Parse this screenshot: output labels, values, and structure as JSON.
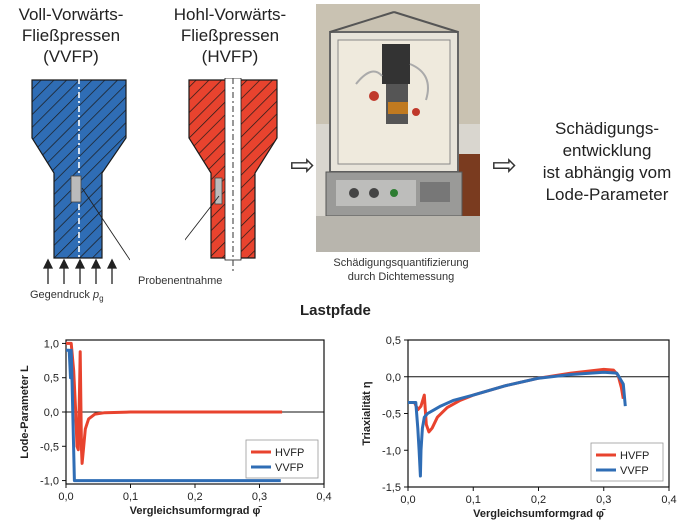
{
  "vvfp": {
    "title_line1": "Voll-Vorwärts-",
    "title_line2": "Fließpressen",
    "title_line3": "(VVFP)",
    "label_gegendruck": "Gegendruck",
    "label_gegendruck_sub": "p",
    "label_gegendruck_subscript": "g"
  },
  "hvfp": {
    "title_line1": "Hohl-Vorwärts-",
    "title_line2": "Fließpressen",
    "title_line3": "(HVFP)",
    "label_probe": "Probenentnahme"
  },
  "photo": {
    "caption_line1": "Schädigungsquantifizierung",
    "caption_line2": "durch Dichtemessung"
  },
  "conclusion": {
    "line1": "Schädigungs-",
    "line2": "entwicklung",
    "line3": "ist abhängig vom",
    "line4": "Lode-Parameter"
  },
  "section_title": "Lastpfade",
  "colors": {
    "vvfp_blue": "#2f6db5",
    "hvfp_red": "#e8432e",
    "hatch": "#1a1a1a"
  },
  "chart_data": [
    {
      "type": "line",
      "xlabel": "Vergleichsumformgrad φ̄",
      "ylabel": "Lode-Parameter L",
      "xlim": [
        0.0,
        0.4
      ],
      "ylim": [
        -1.05,
        1.05
      ],
      "xticks": [
        "0,0",
        "0,1",
        "0,2",
        "0,3",
        "0,4"
      ],
      "yticks": [
        "1,0",
        "0,5",
        "0,0",
        "-0,5",
        "-1,0"
      ],
      "grid": false,
      "legend": "bottom-right",
      "series": [
        {
          "name": "HVFP",
          "color": "#e8432e",
          "x": [
            0.0,
            0.008,
            0.012,
            0.015,
            0.017,
            0.019,
            0.021,
            0.022,
            0.023,
            0.024,
            0.025,
            0.027,
            0.03,
            0.035,
            0.045,
            0.06,
            0.1,
            0.2,
            0.3,
            0.335
          ],
          "y": [
            1.0,
            1.0,
            0.6,
            0.0,
            -0.5,
            -0.55,
            0.3,
            0.88,
            0.2,
            -0.55,
            -0.75,
            -0.55,
            -0.25,
            -0.1,
            -0.03,
            -0.01,
            0.0,
            0.0,
            0.0,
            0.0
          ]
        },
        {
          "name": "VVFP",
          "color": "#2f6db5",
          "x": [
            0.0,
            0.005,
            0.007,
            0.008,
            0.009,
            0.011,
            0.013,
            0.015,
            0.05,
            0.1,
            0.2,
            0.3,
            0.333
          ],
          "y": [
            0.9,
            0.9,
            0.5,
            0.9,
            0.6,
            -0.2,
            -1.0,
            -1.0,
            -1.0,
            -1.0,
            -1.0,
            -1.0,
            -1.0
          ]
        }
      ]
    },
    {
      "type": "line",
      "xlabel": "Vergleichsumformgrad φ̄",
      "ylabel": "Triaxialität η",
      "xlim": [
        0.0,
        0.4
      ],
      "ylim": [
        -1.5,
        0.5
      ],
      "xticks": [
        "0,0",
        "0,1",
        "0,2",
        "0,3",
        "0,4"
      ],
      "yticks": [
        "0,5",
        "0,0",
        "-0,5",
        "-1,0",
        "-1,5"
      ],
      "grid": false,
      "legend": "bottom-right",
      "series": [
        {
          "name": "HVFP",
          "color": "#e8432e",
          "x": [
            0.0,
            0.01,
            0.015,
            0.02,
            0.025,
            0.028,
            0.032,
            0.037,
            0.045,
            0.06,
            0.08,
            0.1,
            0.15,
            0.2,
            0.25,
            0.3,
            0.315,
            0.322,
            0.327,
            0.33
          ],
          "y": [
            -0.35,
            -0.35,
            -0.45,
            -0.4,
            -0.25,
            -0.65,
            -0.75,
            -0.7,
            -0.55,
            -0.42,
            -0.32,
            -0.25,
            -0.12,
            -0.02,
            0.05,
            0.1,
            0.09,
            0.02,
            -0.15,
            -0.3
          ]
        },
        {
          "name": "VVFP",
          "color": "#2f6db5",
          "x": [
            0.0,
            0.012,
            0.015,
            0.017,
            0.019,
            0.02,
            0.022,
            0.025,
            0.03,
            0.04,
            0.05,
            0.07,
            0.1,
            0.15,
            0.2,
            0.25,
            0.3,
            0.32,
            0.33,
            0.333
          ],
          "y": [
            -0.35,
            -0.35,
            -0.7,
            -1.0,
            -1.35,
            -1.0,
            -0.7,
            -0.55,
            -0.5,
            -0.45,
            -0.4,
            -0.32,
            -0.25,
            -0.12,
            -0.02,
            0.03,
            0.06,
            0.05,
            -0.1,
            -0.4
          ]
        }
      ]
    }
  ]
}
